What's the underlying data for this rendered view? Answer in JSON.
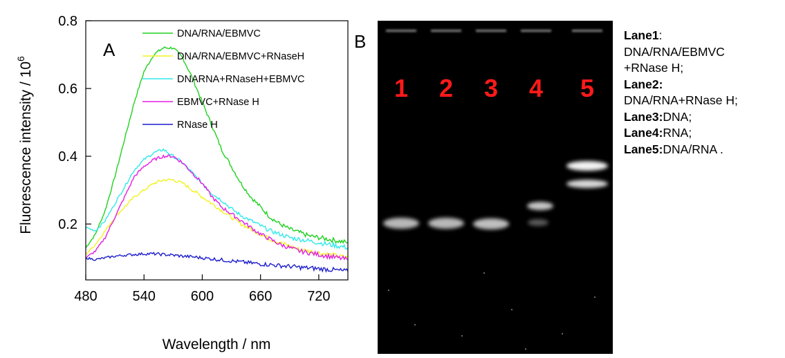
{
  "panel_a": {
    "letter": "A",
    "ylabel_text": "Fluorescence intensity / 10",
    "ylabel_exp": "6",
    "xlabel": "Wavelength / nm",
    "chart_data": {
      "type": "line",
      "xlabel": "Wavelength / nm",
      "ylabel": "Fluorescence intensity / 10^6",
      "xlim": [
        480,
        750
      ],
      "ylim": [
        0.035,
        0.8
      ],
      "xticks": [
        480,
        540,
        600,
        660,
        720
      ],
      "yticks": [
        0.2,
        0.4,
        0.6,
        0.8
      ],
      "grid": false,
      "legend_position": "top-center",
      "series": [
        {
          "name": "DNA/RNA/EBMVC",
          "color": "#1fd11f",
          "x": [
            480,
            490,
            500,
            510,
            520,
            530,
            540,
            550,
            560,
            570,
            580,
            590,
            600,
            610,
            620,
            630,
            640,
            650,
            660,
            670,
            680,
            690,
            700,
            710,
            720,
            730,
            740,
            750
          ],
          "y": [
            0.13,
            0.17,
            0.24,
            0.34,
            0.45,
            0.56,
            0.65,
            0.7,
            0.72,
            0.72,
            0.69,
            0.63,
            0.56,
            0.49,
            0.42,
            0.37,
            0.32,
            0.28,
            0.25,
            0.22,
            0.2,
            0.185,
            0.175,
            0.165,
            0.16,
            0.155,
            0.15,
            0.145
          ]
        },
        {
          "name": "DNA/RNA/EBMVC+RNaseH",
          "color": "#f2f222",
          "x": [
            480,
            490,
            500,
            510,
            520,
            530,
            540,
            550,
            560,
            570,
            580,
            590,
            600,
            610,
            620,
            630,
            640,
            650,
            660,
            670,
            680,
            690,
            700,
            710,
            720,
            730,
            740,
            750
          ],
          "y": [
            0.11,
            0.14,
            0.18,
            0.22,
            0.25,
            0.28,
            0.3,
            0.32,
            0.33,
            0.33,
            0.32,
            0.3,
            0.28,
            0.26,
            0.24,
            0.22,
            0.2,
            0.185,
            0.17,
            0.155,
            0.145,
            0.135,
            0.125,
            0.12,
            0.115,
            0.11,
            0.105,
            0.1
          ]
        },
        {
          "name": "DNARNA+RNaseH+EBMVC",
          "color": "#33e8e8",
          "x": [
            480,
            490,
            500,
            510,
            520,
            530,
            540,
            550,
            560,
            570,
            580,
            590,
            600,
            610,
            620,
            630,
            640,
            650,
            660,
            670,
            680,
            690,
            700,
            710,
            720,
            730,
            740,
            750
          ],
          "y": [
            0.19,
            0.18,
            0.21,
            0.26,
            0.31,
            0.36,
            0.39,
            0.41,
            0.42,
            0.4,
            0.38,
            0.35,
            0.32,
            0.29,
            0.27,
            0.245,
            0.225,
            0.21,
            0.195,
            0.18,
            0.17,
            0.16,
            0.155,
            0.15,
            0.145,
            0.14,
            0.135,
            0.13
          ]
        },
        {
          "name": "EBMVC+RNase H",
          "color": "#e21ee2",
          "x": [
            480,
            490,
            500,
            510,
            520,
            530,
            540,
            550,
            560,
            570,
            580,
            590,
            600,
            610,
            620,
            630,
            640,
            650,
            660,
            670,
            680,
            690,
            700,
            710,
            720,
            730,
            740,
            750
          ],
          "y": [
            0.1,
            0.12,
            0.16,
            0.22,
            0.28,
            0.34,
            0.37,
            0.39,
            0.4,
            0.4,
            0.38,
            0.35,
            0.32,
            0.28,
            0.25,
            0.23,
            0.21,
            0.19,
            0.17,
            0.155,
            0.14,
            0.13,
            0.12,
            0.115,
            0.11,
            0.105,
            0.1,
            0.095
          ]
        },
        {
          "name": "RNase H",
          "color": "#1c1ccc",
          "x": [
            480,
            490,
            500,
            510,
            520,
            530,
            540,
            550,
            560,
            570,
            580,
            590,
            600,
            610,
            620,
            630,
            640,
            650,
            660,
            670,
            680,
            690,
            700,
            710,
            720,
            730,
            740,
            750
          ],
          "y": [
            0.1,
            0.095,
            0.1,
            0.105,
            0.108,
            0.11,
            0.112,
            0.112,
            0.11,
            0.108,
            0.105,
            0.103,
            0.1,
            0.097,
            0.094,
            0.091,
            0.088,
            0.085,
            0.082,
            0.08,
            0.077,
            0.075,
            0.072,
            0.07,
            0.068,
            0.066,
            0.063,
            0.06
          ]
        }
      ]
    }
  },
  "panel_b": {
    "letter": "B",
    "lanes": [
      "1",
      "2",
      "3",
      "4",
      "5"
    ],
    "legend": [
      {
        "label": "Lane1",
        "sep": ":",
        "text": ""
      },
      {
        "label": "",
        "sep": "",
        "text": "DNA/RNA/EBMVC"
      },
      {
        "label": "",
        "sep": "",
        "text": "+RNase H;"
      },
      {
        "label": "Lane2:",
        "sep": "",
        "text": ""
      },
      {
        "label": "",
        "sep": "",
        "text": "DNA/RNA+RNase H;"
      },
      {
        "label": "Lane3:",
        "sep": "",
        "text": "DNA;"
      },
      {
        "label": "Lane4:",
        "sep": "",
        "text": "RNA;"
      },
      {
        "label": "Lane5:",
        "sep": "",
        "text": "DNA/RNA ."
      }
    ]
  },
  "colors": {
    "gel_background": "#000000",
    "lane_number": "#ff1a1a"
  }
}
